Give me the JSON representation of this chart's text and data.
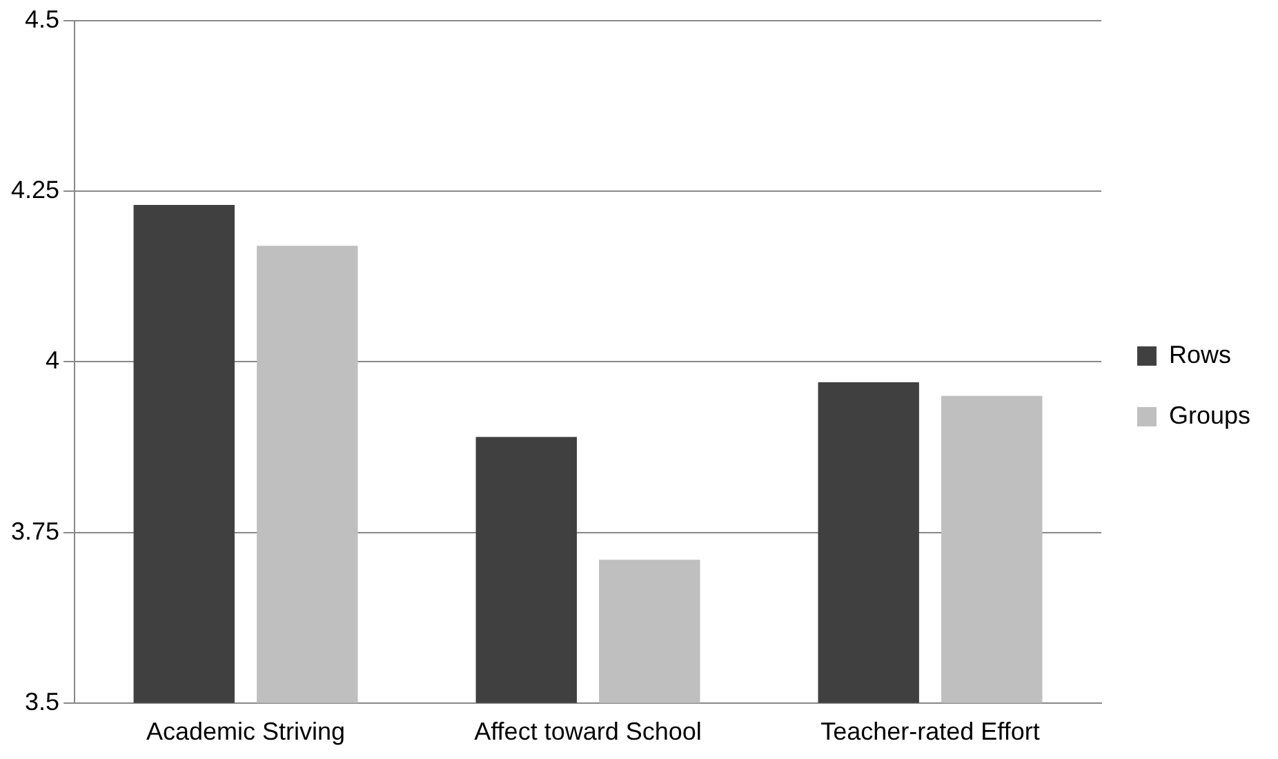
{
  "chart_data": {
    "type": "bar",
    "categories": [
      "Academic Striving",
      "Affect toward School",
      "Teacher-rated Effort"
    ],
    "series": [
      {
        "name": "Rows",
        "color": "#404040",
        "values": [
          4.23,
          3.89,
          3.97
        ]
      },
      {
        "name": "Groups",
        "color": "#bfbfbf",
        "values": [
          4.17,
          3.71,
          3.95
        ]
      }
    ],
    "ylim": [
      3.5,
      4.5
    ],
    "yticks": [
      3.5,
      3.75,
      4,
      4.25,
      4.5
    ],
    "grid": "y",
    "legend": "right"
  }
}
